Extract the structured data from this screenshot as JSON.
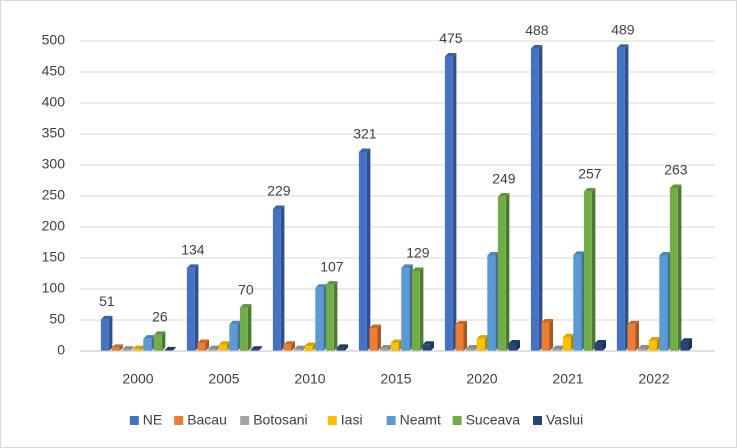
{
  "chart_data": {
    "type": "bar",
    "categories": [
      "2000",
      "2005",
      "2010",
      "2015",
      "2020",
      "2021",
      "2022"
    ],
    "series": [
      {
        "name": "NE",
        "color": "#4472c4",
        "values": [
          51,
          134,
          229,
          321,
          475,
          488,
          489
        ],
        "data_labels": true
      },
      {
        "name": "Bacau",
        "color": "#ed7d31",
        "values": [
          5,
          13,
          10,
          37,
          43,
          46,
          43
        ]
      },
      {
        "name": "Botosani",
        "color": "#a5a5a5",
        "values": [
          2,
          3,
          3,
          4,
          4,
          3,
          4
        ]
      },
      {
        "name": "Iasi",
        "color": "#ffc000",
        "values": [
          3,
          10,
          8,
          13,
          20,
          22,
          17
        ]
      },
      {
        "name": "Neamt",
        "color": "#5b9bd5",
        "values": [
          20,
          43,
          102,
          134,
          154,
          155,
          154
        ]
      },
      {
        "name": "Suceava",
        "color": "#70ad47",
        "values": [
          26,
          70,
          107,
          129,
          249,
          257,
          263
        ],
        "data_labels": true
      },
      {
        "name": "Vaslui",
        "color": "#264478",
        "values": [
          1,
          2,
          5,
          10,
          12,
          12,
          15
        ]
      }
    ],
    "ylim": [
      0,
      500
    ],
    "yticks": [
      0,
      50,
      100,
      150,
      200,
      250,
      300,
      350,
      400,
      450,
      500
    ],
    "grid": true,
    "legend": "bottom"
  }
}
